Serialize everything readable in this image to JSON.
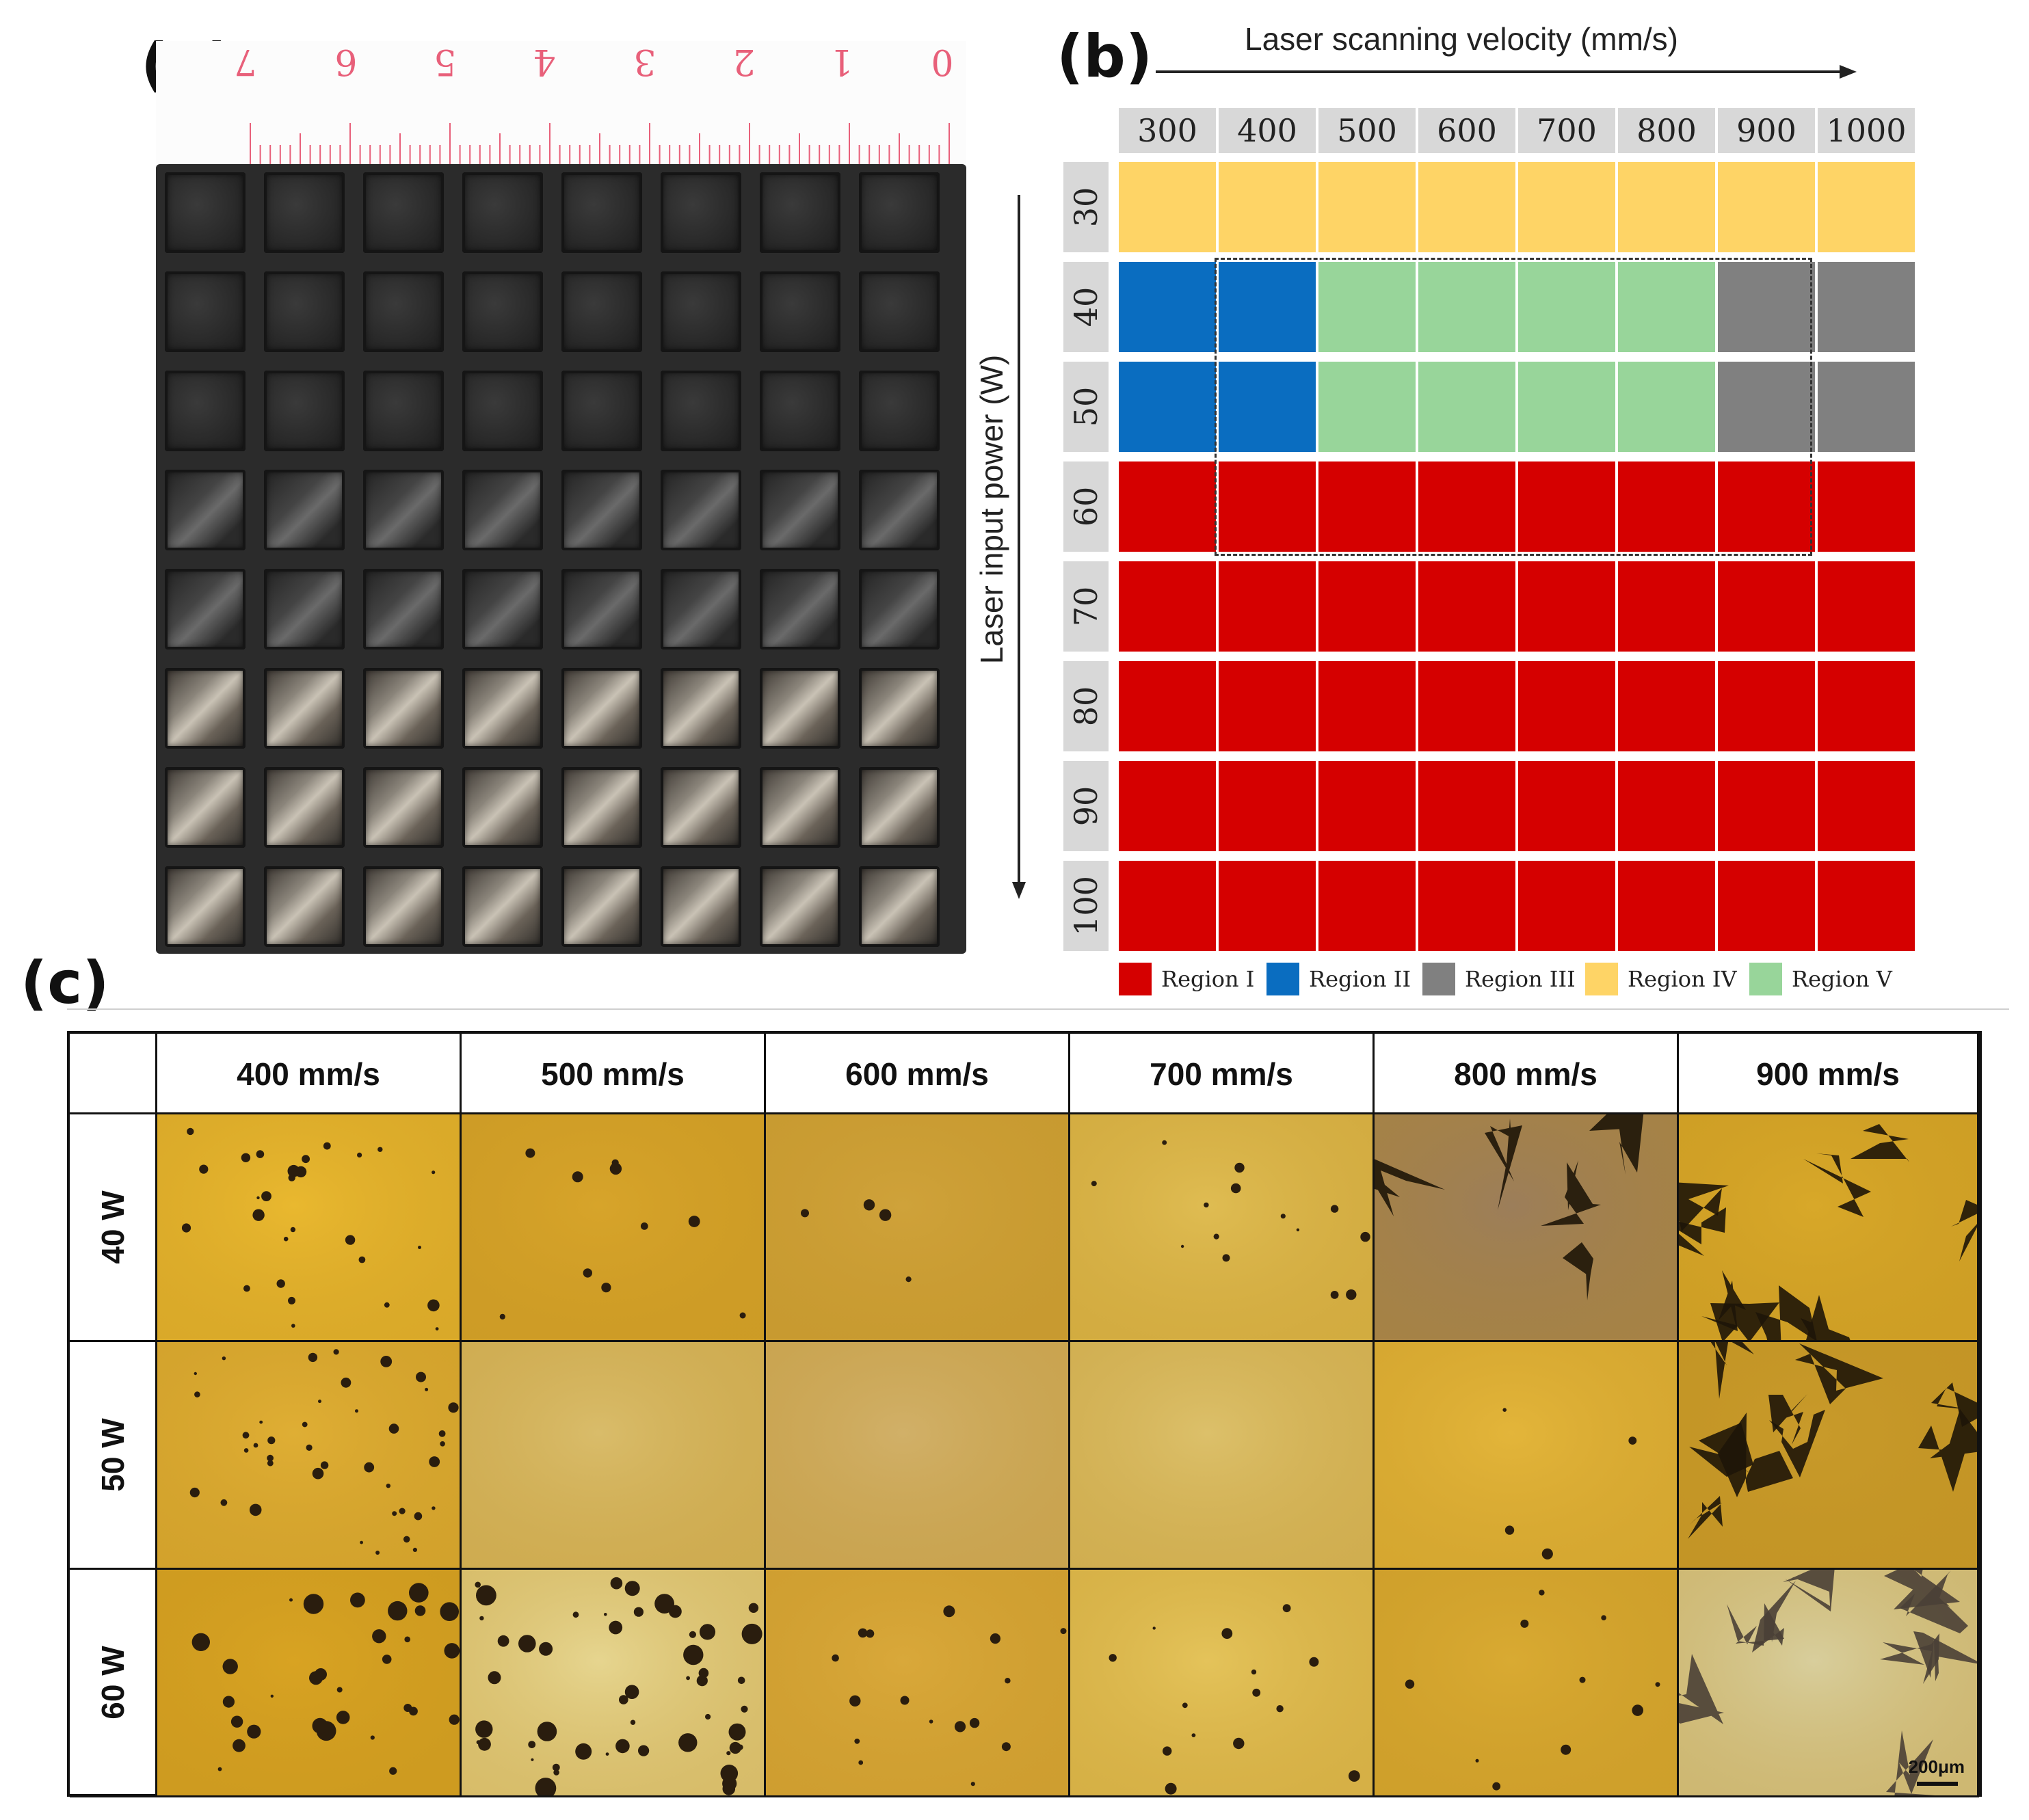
{
  "panels": {
    "a": {
      "label": "(a)",
      "ruler_numbers": [
        "0",
        "1",
        "2",
        "3",
        "4",
        "5",
        "6",
        "7"
      ]
    },
    "b": {
      "label": "(b)",
      "x_axis_title": "Laser scanning velocity (mm/s)",
      "y_axis_title": "Laser input power (W)",
      "x_values": [
        "300",
        "400",
        "500",
        "600",
        "700",
        "800",
        "900",
        "1000"
      ],
      "y_values": [
        "30",
        "40",
        "50",
        "60",
        "70",
        "80",
        "90",
        "100"
      ],
      "grid_regions": [
        [
          "IV",
          "IV",
          "IV",
          "IV",
          "IV",
          "IV",
          "IV",
          "IV"
        ],
        [
          "II",
          "II",
          "V",
          "V",
          "V",
          "V",
          "III",
          "III"
        ],
        [
          "II",
          "II",
          "V",
          "V",
          "V",
          "V",
          "III",
          "III"
        ],
        [
          "I",
          "I",
          "I",
          "I",
          "I",
          "I",
          "I",
          "I"
        ],
        [
          "I",
          "I",
          "I",
          "I",
          "I",
          "I",
          "I",
          "I"
        ],
        [
          "I",
          "I",
          "I",
          "I",
          "I",
          "I",
          "I",
          "I"
        ],
        [
          "I",
          "I",
          "I",
          "I",
          "I",
          "I",
          "I",
          "I"
        ],
        [
          "I",
          "I",
          "I",
          "I",
          "I",
          "I",
          "I",
          "I"
        ]
      ],
      "region_colors": {
        "I": "#d50000",
        "II": "#0a6dc0",
        "III": "#808080",
        "IV": "#fed466",
        "V": "#98d59a"
      },
      "legend": [
        {
          "key": "I",
          "label": "Region I"
        },
        {
          "key": "II",
          "label": "Region II"
        },
        {
          "key": "III",
          "label": "Region III"
        },
        {
          "key": "IV",
          "label": "Region IV"
        },
        {
          "key": "V",
          "label": "Region V"
        }
      ]
    },
    "c": {
      "label": "(c)",
      "columns": [
        "400 mm/s",
        "500 mm/s",
        "600 mm/s",
        "700 mm/s",
        "800 mm/s",
        "900 mm/s"
      ],
      "rows": [
        "40 W",
        "50 W",
        "60 W"
      ],
      "scale_bar": "200μm"
    }
  },
  "colors": {
    "ruler_red": "#e8607a",
    "plate": "#2b2b2b",
    "micro_yellow": "#e2b93a"
  }
}
